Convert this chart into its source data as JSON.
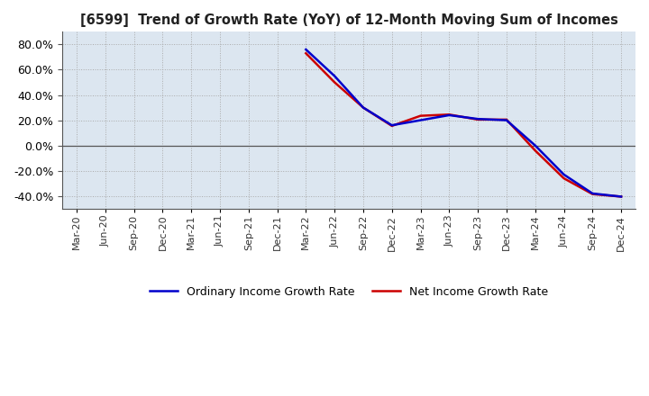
{
  "title": "[6599]  Trend of Growth Rate (YoY) of 12-Month Moving Sum of Incomes",
  "ylim": [
    -0.5,
    0.9
  ],
  "yticks": [
    -0.4,
    -0.2,
    0.0,
    0.2,
    0.4,
    0.6,
    0.8
  ],
  "background_color": "#dce6f0",
  "plot_bg_color": "#dce6f0",
  "grid_color": "#aaaaaa",
  "ordinary_color": "#0000cc",
  "net_color": "#cc0000",
  "legend_ordinary": "Ordinary Income Growth Rate",
  "legend_net": "Net Income Growth Rate",
  "dates": [
    "Mar-20",
    "Jun-20",
    "Sep-20",
    "Dec-20",
    "Mar-21",
    "Jun-21",
    "Sep-21",
    "Dec-21",
    "Mar-22",
    "Jun-22",
    "Sep-22",
    "Dec-22",
    "Mar-23",
    "Jun-23",
    "Sep-23",
    "Dec-23",
    "Mar-24",
    "Jun-24",
    "Sep-24",
    "Dec-24"
  ],
  "ordinary_income": [
    null,
    null,
    null,
    null,
    null,
    null,
    null,
    null,
    0.76,
    0.55,
    0.3,
    0.16,
    0.2,
    0.24,
    0.21,
    0.2,
    0.0,
    -0.23,
    -0.38,
    -0.405
  ],
  "net_income": [
    null,
    null,
    null,
    null,
    null,
    null,
    null,
    null,
    0.73,
    0.5,
    0.3,
    0.155,
    0.235,
    0.245,
    0.205,
    0.205,
    -0.04,
    -0.26,
    -0.385,
    -0.405
  ]
}
